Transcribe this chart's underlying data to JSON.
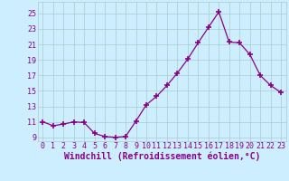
{
  "x": [
    0,
    1,
    2,
    3,
    4,
    5,
    6,
    7,
    8,
    9,
    10,
    11,
    12,
    13,
    14,
    15,
    16,
    17,
    18,
    19,
    20,
    21,
    22,
    23
  ],
  "y": [
    11.0,
    10.5,
    10.7,
    11.0,
    10.9,
    9.5,
    9.1,
    9.0,
    9.1,
    11.1,
    13.2,
    14.3,
    15.7,
    17.3,
    19.1,
    21.2,
    23.2,
    25.2,
    21.3,
    21.2,
    19.7,
    17.0,
    15.7,
    14.8
  ],
  "line_color": "#880088",
  "marker": "+",
  "marker_size": 4,
  "marker_lw": 1.2,
  "bg_color": "#cceeff",
  "grid_color": "#aacccc",
  "xlabel": "Windchill (Refroidissement éolien,°C)",
  "xlim": [
    -0.5,
    23.5
  ],
  "ylim": [
    8.5,
    26.5
  ],
  "yticks": [
    9,
    11,
    13,
    15,
    17,
    19,
    21,
    23,
    25
  ],
  "xticks": [
    0,
    1,
    2,
    3,
    4,
    5,
    6,
    7,
    8,
    9,
    10,
    11,
    12,
    13,
    14,
    15,
    16,
    17,
    18,
    19,
    20,
    21,
    22,
    23
  ],
  "tick_label_fontsize": 6,
  "xlabel_fontsize": 7,
  "label_color": "#880088",
  "linewidth": 0.9
}
